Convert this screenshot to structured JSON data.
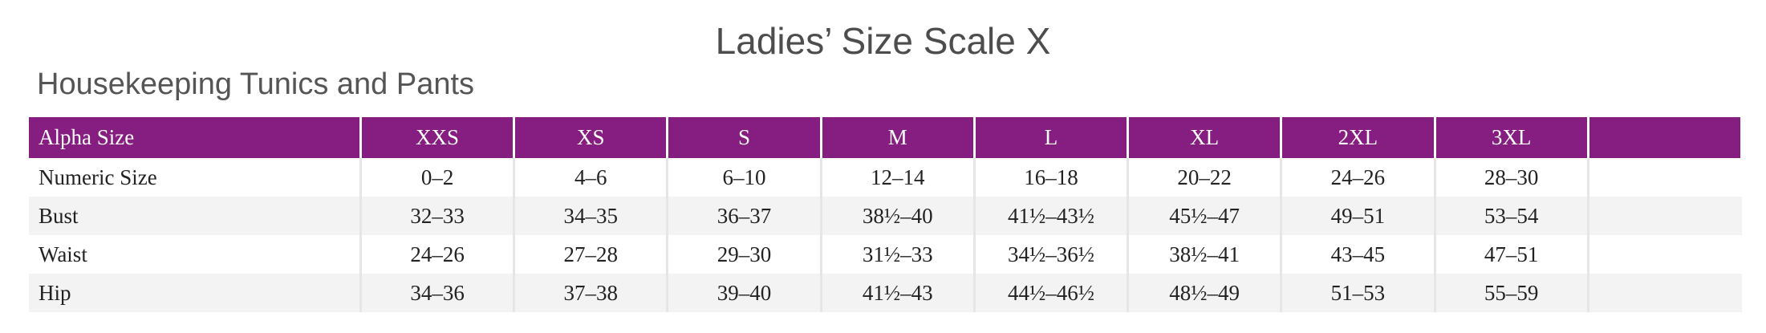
{
  "header": {
    "title": "Ladies’ Size Scale X",
    "subtitle": "Housekeeping Tunics and Pants"
  },
  "table": {
    "columns": [
      "Alpha Size",
      "XXS",
      "XS",
      "S",
      "M",
      "L",
      "XL",
      "2XL",
      "3XL"
    ],
    "rows": [
      [
        "Numeric Size",
        "0–2",
        "4–6",
        "6–10",
        "12–14",
        "16–18",
        "20–22",
        "24–26",
        "28–30"
      ],
      [
        "Bust",
        "32–33",
        "34–35",
        "36–37",
        "38½–40",
        "41½–43½",
        "45½–47",
        "49–51",
        "53–54"
      ],
      [
        "Waist",
        "24–26",
        "27–28",
        "29–30",
        "31½–33",
        "34½–36½",
        "38½–41",
        "43–45",
        "47–51"
      ],
      [
        "Hip",
        "34–36",
        "37–38",
        "39–40",
        "41½–43",
        "44½–46½",
        "48½–49",
        "51–53",
        "55–59"
      ]
    ]
  }
}
